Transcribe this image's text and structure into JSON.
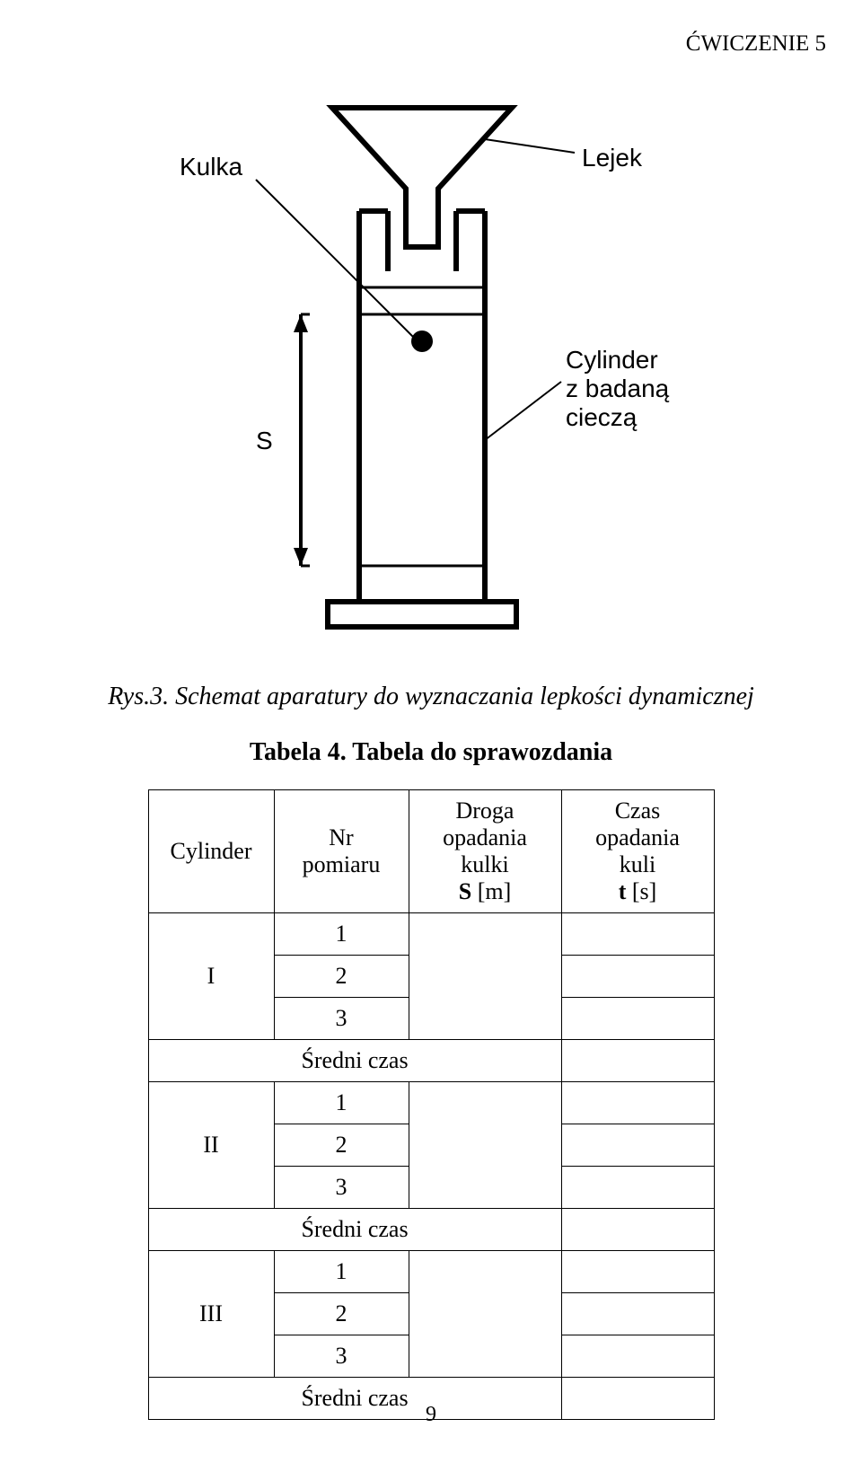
{
  "header_label": "ĆWICZENIE 5",
  "diagram": {
    "labels": {
      "kulka": "Kulka",
      "lejek": "Lejek",
      "s": "S",
      "cylinder_line1": "Cylinder",
      "cylinder_line2": "z badaną",
      "cylinder_line3": "cieczą"
    },
    "stroke_color": "#000000",
    "stroke_width_heavy": 6,
    "stroke_width_medium": 3,
    "stroke_width_thin": 2,
    "ball_fill": "#000000",
    "label_font_size": 28
  },
  "caption": "Rys.3. Schemat aparatury do wyznaczania lepkości dynamicznej",
  "tabela_title": "Tabela 4. Tabela do sprawozdania",
  "table": {
    "headers": {
      "cylinder": "Cylinder",
      "nr_line1": "Nr",
      "nr_line2": "pomiaru",
      "droga_line1": "Droga",
      "droga_line2": "opadania",
      "droga_line3": "kulki",
      "droga_line4_pre": "S",
      "droga_line4_unit": " [m]",
      "czas_line1": "Czas",
      "czas_line2": "opadania",
      "czas_line3": "kuli",
      "czas_line4_pre": "t",
      "czas_line4_unit": " [s]"
    },
    "cylinders": [
      "I",
      "II",
      "III"
    ],
    "pomiary": [
      "1",
      "2",
      "3"
    ],
    "sredni_czas": "Średni czas"
  },
  "page_number": "9"
}
